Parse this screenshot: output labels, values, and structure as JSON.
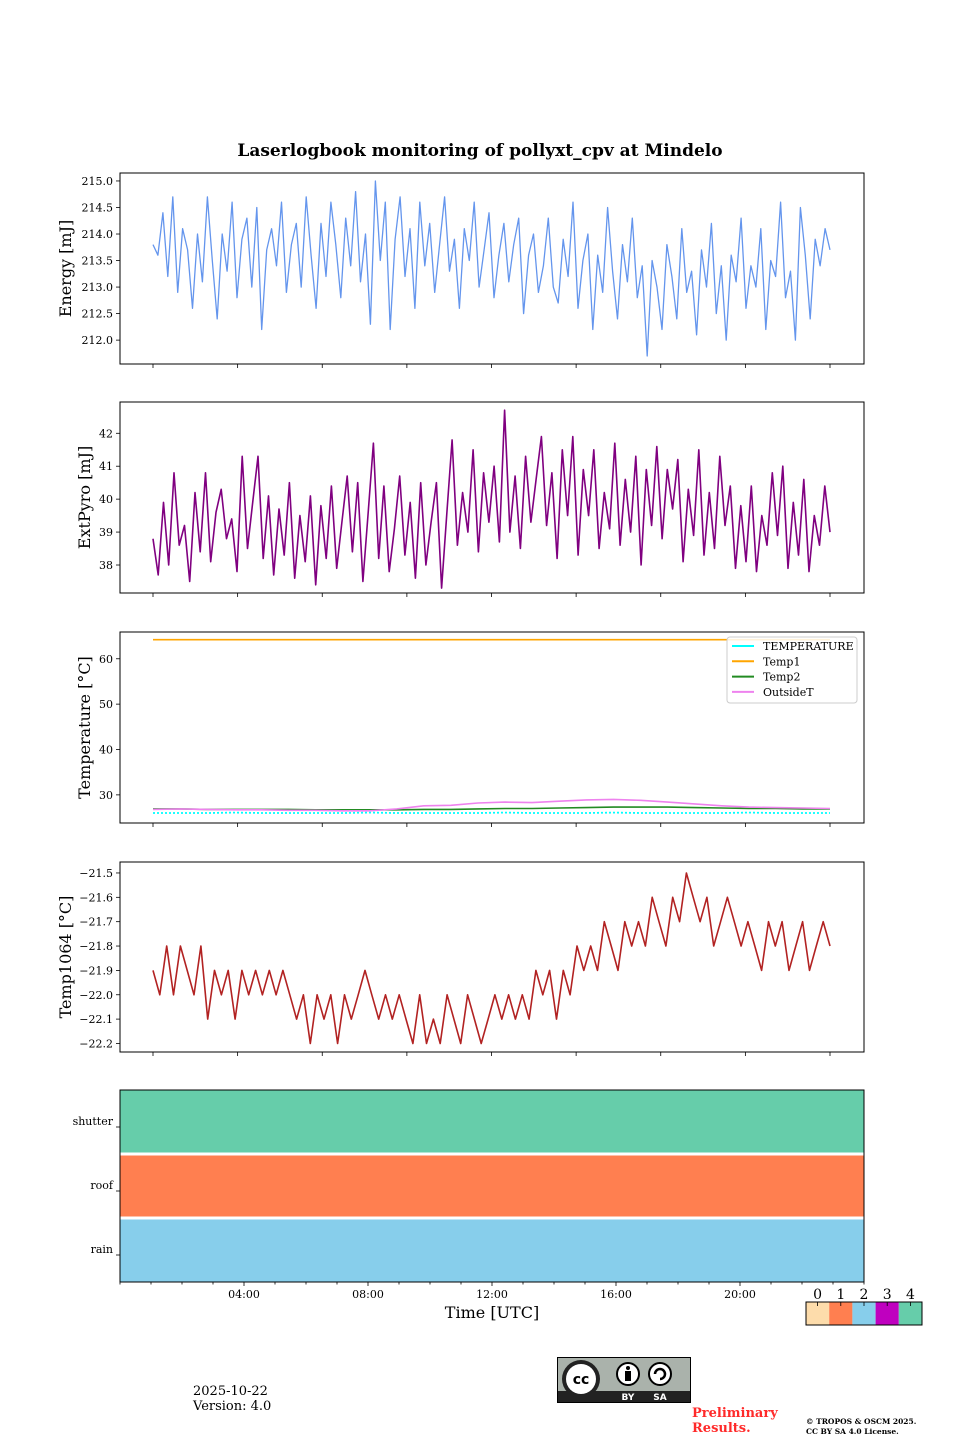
{
  "title": "Laserlogbook monitoring of pollyxt_cpv at Mindelo",
  "footer": {
    "date": "2025-10-22",
    "version": "Version: 4.0",
    "preliminary": "Preliminary Results.",
    "preliminary_line1": "Preliminary",
    "preliminary_line2": "Results.",
    "copyright_line1": "© TROPOS & OSCM 2025.",
    "copyright_line2": "CC BY SA 4.0 License.",
    "license_badge": {
      "left": "cc",
      "by": "BY",
      "sa": "SA"
    }
  },
  "chart_data": [
    {
      "type": "line",
      "id": "energy",
      "ylabel": "Energy [mJ]",
      "yticks": [
        212.0,
        212.5,
        213.0,
        213.5,
        214.0,
        214.5,
        215.0
      ],
      "ytick_labels": [
        "212.0",
        "212.5",
        "213.0",
        "213.5",
        "214.0",
        "214.5",
        "215.0"
      ],
      "ylim": [
        211.55,
        215.15
      ],
      "x_ticks_count": 9,
      "x_tick_labels_shown": false,
      "grid": false,
      "series": [
        {
          "name": "Energy",
          "color": "#6495ed",
          "values": [
            213.8,
            213.6,
            214.4,
            213.2,
            214.7,
            212.9,
            214.1,
            213.7,
            212.6,
            214.0,
            213.1,
            214.7,
            213.5,
            212.4,
            214.0,
            213.3,
            214.6,
            212.8,
            213.9,
            214.3,
            213.0,
            214.5,
            212.2,
            213.7,
            214.1,
            213.4,
            214.6,
            212.9,
            213.8,
            214.2,
            213.0,
            214.7,
            213.6,
            212.6,
            214.2,
            213.2,
            214.6,
            213.8,
            212.8,
            214.3,
            213.4,
            214.8,
            213.1,
            214.0,
            212.3,
            215.0,
            213.5,
            214.6,
            212.2,
            213.9,
            214.7,
            213.2,
            214.1,
            212.6,
            214.6,
            213.4,
            214.2,
            212.9,
            213.8,
            214.7,
            213.3,
            213.9,
            212.6,
            214.1,
            213.5,
            214.6,
            213.0,
            213.7,
            214.4,
            212.8,
            213.6,
            214.2,
            213.1,
            213.8,
            214.3,
            212.5,
            213.6,
            214.0,
            212.9,
            213.4,
            214.3,
            213.0,
            212.7,
            213.9,
            213.2,
            214.6,
            212.6,
            213.5,
            214.0,
            212.2,
            213.6,
            212.9,
            214.5,
            213.3,
            212.4,
            213.8,
            213.1,
            214.3,
            212.8,
            213.4,
            211.7,
            213.5,
            213.0,
            212.2,
            213.8,
            213.2,
            212.4,
            214.1,
            212.9,
            213.3,
            212.1,
            213.7,
            213.0,
            214.2,
            212.5,
            213.4,
            212.0,
            213.6,
            213.1,
            214.3,
            212.6,
            213.4,
            213.0,
            214.1,
            212.2,
            213.5,
            213.2,
            214.6,
            212.8,
            213.3,
            212.0,
            214.5,
            213.6,
            212.4,
            213.9,
            213.4,
            214.1,
            213.7
          ]
        }
      ]
    },
    {
      "type": "line",
      "id": "extpyro",
      "ylabel": "ExtPyro [mJ]",
      "yticks": [
        38,
        39,
        40,
        41,
        42
      ],
      "ytick_labels": [
        "38",
        "39",
        "40",
        "41",
        "42"
      ],
      "ylim": [
        37.15,
        42.95
      ],
      "x_ticks_count": 9,
      "x_tick_labels_shown": false,
      "grid": false,
      "series": [
        {
          "name": "ExtPyro",
          "color": "#800080",
          "values": [
            38.8,
            37.7,
            39.9,
            38.0,
            40.8,
            38.6,
            39.2,
            37.5,
            40.2,
            38.4,
            40.8,
            38.1,
            39.6,
            40.3,
            38.8,
            39.4,
            37.8,
            41.3,
            38.5,
            39.9,
            41.3,
            38.2,
            40.1,
            37.7,
            39.7,
            38.3,
            40.5,
            37.6,
            39.5,
            38.1,
            40.1,
            37.4,
            39.8,
            38.2,
            40.4,
            37.9,
            39.3,
            40.7,
            38.4,
            40.5,
            37.5,
            39.6,
            41.7,
            38.2,
            40.4,
            37.8,
            39.1,
            40.7,
            38.3,
            39.9,
            37.6,
            40.5,
            38.0,
            39.3,
            40.5,
            37.3,
            39.6,
            41.8,
            38.6,
            40.2,
            39.0,
            41.5,
            38.4,
            40.8,
            39.3,
            41.0,
            38.7,
            42.7,
            39.0,
            40.7,
            38.5,
            41.3,
            39.3,
            40.6,
            41.9,
            39.2,
            40.8,
            38.2,
            41.5,
            39.5,
            41.9,
            38.3,
            40.9,
            39.5,
            41.5,
            38.5,
            40.2,
            39.1,
            41.7,
            38.6,
            40.6,
            39.0,
            41.3,
            38.0,
            40.9,
            39.2,
            41.6,
            38.8,
            40.9,
            39.7,
            41.2,
            38.1,
            40.3,
            38.9,
            41.5,
            38.3,
            40.2,
            38.5,
            41.3,
            39.2,
            40.4,
            37.9,
            39.8,
            38.1,
            40.4,
            37.8,
            39.5,
            38.6,
            40.8,
            38.9,
            41.0,
            37.9,
            39.9,
            38.3,
            40.6,
            37.8,
            39.5,
            38.6,
            40.4,
            39.0
          ]
        }
      ]
    },
    {
      "type": "line",
      "id": "temperature",
      "ylabel": "Temperature [°C]",
      "yticks": [
        30,
        40,
        50,
        60
      ],
      "ytick_labels": [
        "30",
        "40",
        "50",
        "60"
      ],
      "ylim": [
        23.8,
        65.9
      ],
      "x_ticks_count": 9,
      "x_tick_labels_shown": false,
      "grid": false,
      "legend": {
        "placement": "top-right"
      },
      "series": [
        {
          "name": "TEMPERATURE",
          "color": "#00ffff",
          "style": "dotted",
          "values": [
            26.0,
            26.0,
            26.0,
            26.1,
            26.0,
            26.0,
            26.0,
            26.0,
            26.1,
            26.0,
            26.0,
            26.0,
            26.0,
            26.1,
            26.0,
            26.0,
            26.0,
            26.1,
            26.0,
            26.0,
            26.0,
            26.0,
            26.1,
            26.0,
            26.0,
            26.0
          ]
        },
        {
          "name": "Temp1",
          "color": "#ffa500",
          "style": "solid",
          "values": [
            64.2,
            64.2,
            64.2,
            64.2,
            64.2,
            64.2,
            64.2,
            64.2,
            64.2,
            64.2,
            64.2,
            64.2,
            64.2,
            64.2,
            64.2,
            64.2,
            64.2,
            64.2,
            64.2,
            64.2,
            64.2,
            64.2,
            64.2,
            64.2,
            64.2,
            64.2
          ]
        },
        {
          "name": "Temp2",
          "color": "#228b22",
          "style": "solid",
          "values": [
            26.9,
            26.9,
            26.8,
            26.8,
            26.8,
            26.8,
            26.7,
            26.7,
            26.7,
            26.7,
            26.8,
            26.8,
            26.9,
            27.0,
            27.0,
            27.1,
            27.2,
            27.3,
            27.3,
            27.3,
            27.2,
            27.1,
            27.0,
            27.0,
            26.9,
            26.9
          ]
        },
        {
          "name": "OutsideT",
          "color": "#ee82ee",
          "style": "solid",
          "values": [
            26.8,
            26.9,
            26.8,
            26.7,
            26.7,
            26.6,
            26.6,
            26.5,
            26.5,
            26.9,
            27.6,
            27.7,
            28.2,
            28.4,
            28.3,
            28.6,
            28.9,
            29.0,
            28.8,
            28.4,
            28.0,
            27.6,
            27.3,
            27.2,
            27.1,
            27.0
          ]
        }
      ]
    },
    {
      "type": "line",
      "id": "temp1064",
      "ylabel": "Temp1064 [°C]",
      "yticks": [
        -22.2,
        -22.1,
        -22.0,
        -21.9,
        -21.8,
        -21.7,
        -21.6,
        -21.5
      ],
      "ytick_labels": [
        "−22.2",
        "−22.1",
        "−22.0",
        "−21.9",
        "−21.8",
        "−21.7",
        "−21.6",
        "−21.5"
      ],
      "ylim": [
        -22.235,
        -21.455
      ],
      "x_ticks_count": 9,
      "x_tick_labels_shown": false,
      "grid": false,
      "series": [
        {
          "name": "Temp1064",
          "color": "#b22222",
          "values": [
            -21.9,
            -22.0,
            -21.8,
            -22.0,
            -21.8,
            -21.9,
            -22.0,
            -21.8,
            -22.1,
            -21.9,
            -22.0,
            -21.9,
            -22.1,
            -21.9,
            -22.0,
            -21.9,
            -22.0,
            -21.9,
            -22.0,
            -21.9,
            -22.0,
            -22.1,
            -22.0,
            -22.2,
            -22.0,
            -22.1,
            -22.0,
            -22.2,
            -22.0,
            -22.1,
            -22.0,
            -21.9,
            -22.0,
            -22.1,
            -22.0,
            -22.1,
            -22.0,
            -22.1,
            -22.2,
            -22.0,
            -22.2,
            -22.1,
            -22.2,
            -22.0,
            -22.1,
            -22.2,
            -22.0,
            -22.1,
            -22.2,
            -22.1,
            -22.0,
            -22.1,
            -22.0,
            -22.1,
            -22.0,
            -22.1,
            -21.9,
            -22.0,
            -21.9,
            -22.1,
            -21.9,
            -22.0,
            -21.8,
            -21.9,
            -21.8,
            -21.9,
            -21.7,
            -21.8,
            -21.9,
            -21.7,
            -21.8,
            -21.7,
            -21.8,
            -21.6,
            -21.7,
            -21.8,
            -21.6,
            -21.7,
            -21.5,
            -21.6,
            -21.7,
            -21.6,
            -21.8,
            -21.7,
            -21.6,
            -21.7,
            -21.8,
            -21.7,
            -21.8,
            -21.9,
            -21.7,
            -21.8,
            -21.7,
            -21.9,
            -21.8,
            -21.7,
            -21.9,
            -21.8,
            -21.7,
            -21.8
          ]
        }
      ]
    },
    {
      "type": "heatmap",
      "id": "status",
      "rows": [
        "shutter",
        "roof",
        "rain"
      ],
      "row_values": [
        4,
        1,
        2
      ],
      "xlabel": "Time [UTC]",
      "xlim_hours": [
        0,
        24
      ],
      "xtick_labels": [
        "04:00",
        "08:00",
        "12:00",
        "16:00",
        "20:00"
      ],
      "xtick_hours": [
        4,
        8,
        12,
        16,
        20
      ],
      "colorbar": {
        "ticks": [
          "0",
          "1",
          "2",
          "3",
          "4"
        ],
        "colors": [
          "#fddcab",
          "#ff7f50",
          "#87ceeb",
          "#bf00bf",
          "#66cdaa"
        ]
      }
    }
  ]
}
